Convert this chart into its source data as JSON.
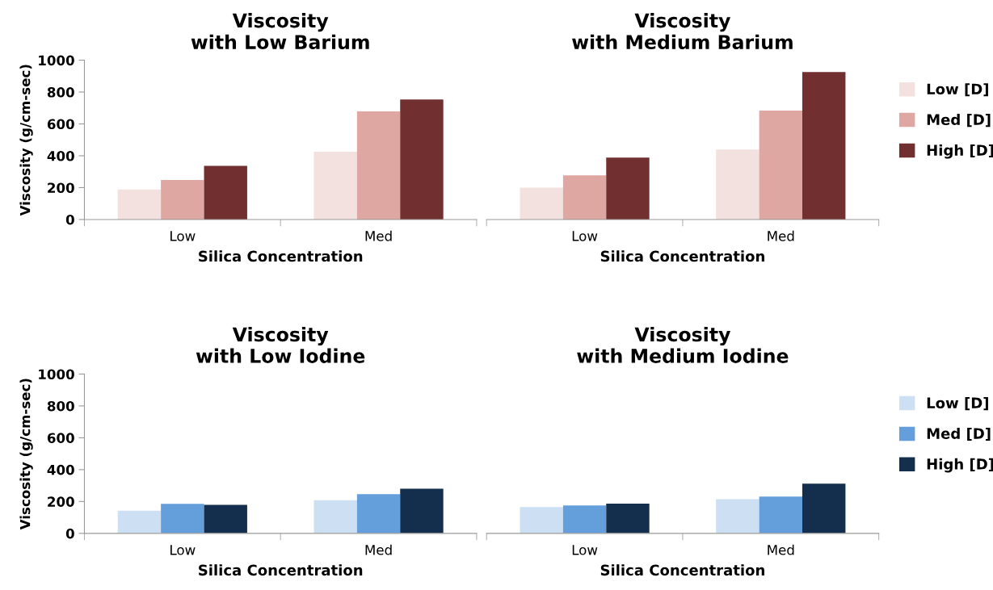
{
  "chart_data": [
    {
      "type": "bar",
      "title": "Viscosity\nwith Low Barium",
      "xlabel": "Silica Concentration",
      "ylabel": "Viscosity (g/cm-sec)",
      "categories": [
        "Low",
        "Med"
      ],
      "ylim": [
        0,
        1000
      ],
      "yticks": [
        0,
        200,
        400,
        600,
        800,
        1000
      ],
      "grid": false,
      "legend": false,
      "series": [
        {
          "color": "#f2e1de",
          "values": [
            188,
            425
          ]
        },
        {
          "color": "#dfa7a2",
          "values": [
            248,
            678
          ]
        },
        {
          "color": "#722f2f",
          "values": [
            337,
            753
          ]
        }
      ]
    },
    {
      "type": "bar",
      "title": "Viscosity\nwith Medium Barium",
      "xlabel": "Silica Concentration",
      "categories": [
        "Low",
        "Med"
      ],
      "ylim": [
        0,
        1000
      ],
      "tick_labels": "x",
      "grid": false,
      "legend": "right",
      "series": [
        {
          "name": "Low [D]",
          "color": "#f2e1de",
          "values": [
            200,
            439
          ]
        },
        {
          "name": "Med [D]",
          "color": "#dfa7a2",
          "values": [
            277,
            684
          ]
        },
        {
          "name": "High [D]",
          "color": "#722f2f",
          "values": [
            388,
            925
          ]
        }
      ]
    },
    {
      "type": "bar",
      "title": "Viscosity\nwith Low Iodine",
      "xlabel": "Silica Concentration",
      "ylabel": "Viscosity (g/cm-sec)",
      "categories": [
        "Low",
        "Med"
      ],
      "ylim": [
        0,
        1000
      ],
      "yticks": [
        0,
        200,
        400,
        600,
        800,
        1000
      ],
      "grid": false,
      "legend": false,
      "series": [
        {
          "color": "#cddff3",
          "values": [
            142,
            208
          ]
        },
        {
          "color": "#659fdb",
          "values": [
            185,
            246
          ]
        },
        {
          "color": "#142e4d",
          "values": [
            179,
            280
          ]
        }
      ]
    },
    {
      "type": "bar",
      "title": "Viscosity\nwith Medium Iodine",
      "xlabel": "Silica Concentration",
      "categories": [
        "Low",
        "Med"
      ],
      "ylim": [
        0,
        1000
      ],
      "tick_labels": "x",
      "grid": false,
      "legend": "right",
      "series": [
        {
          "name": "Low [D]",
          "color": "#cddff3",
          "values": [
            165,
            215
          ]
        },
        {
          "name": "Med [D]",
          "color": "#659fdb",
          "values": [
            175,
            231
          ]
        },
        {
          "name": "High [D]",
          "color": "#142e4d",
          "values": [
            187,
            312
          ]
        }
      ]
    }
  ]
}
